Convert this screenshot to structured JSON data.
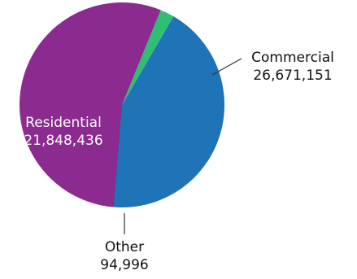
{
  "chart_data": {
    "type": "pie",
    "slices": [
      {
        "label": "Residential",
        "value": 21848436,
        "value_label": "21,848,436",
        "color": "#1f73b7"
      },
      {
        "label": "Other",
        "value": 94996,
        "value_label": "94,996",
        "color": "#2fbf72"
      },
      {
        "label": "Commercial",
        "value": 26671151,
        "value_label": "26,671,151",
        "color": "#8b2a8f"
      }
    ],
    "start_angle_deg": 258,
    "direction": "counterclockwise",
    "title": "",
    "legend": "none"
  }
}
